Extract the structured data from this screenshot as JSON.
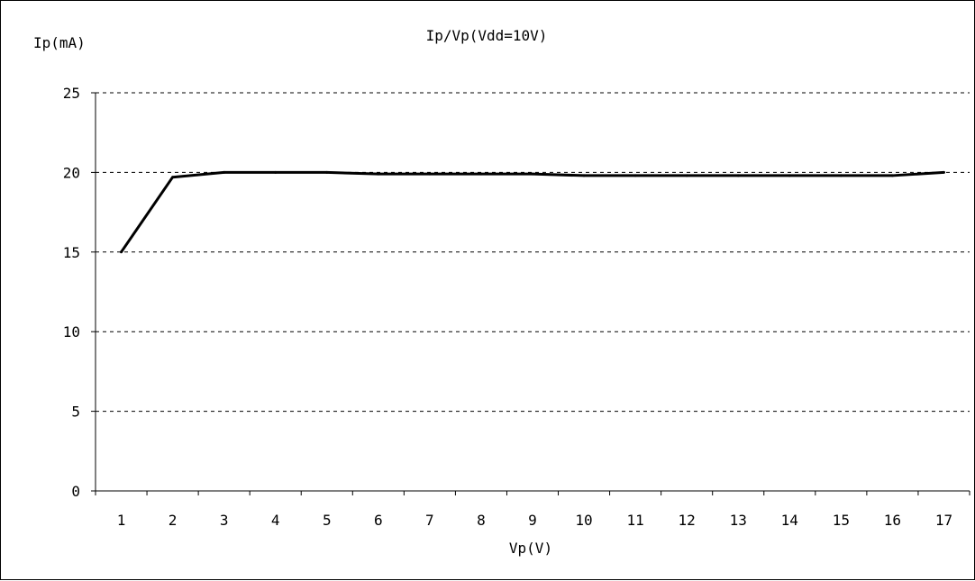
{
  "chart_data": {
    "type": "line",
    "title": "Ip/Vp(Vdd=10V)",
    "xlabel": "Vp(V)",
    "ylabel": "Ip(mA)",
    "categories": [
      "1",
      "2",
      "3",
      "4",
      "5",
      "6",
      "7",
      "8",
      "9",
      "10",
      "11",
      "12",
      "13",
      "14",
      "15",
      "16",
      "17"
    ],
    "yticks": [
      "0",
      "5",
      "10",
      "15",
      "20",
      "25"
    ],
    "ylim": [
      0,
      25
    ],
    "grid": "horizontal dashed",
    "line_color": "#000000",
    "series": [
      {
        "values": [
          15,
          19.7,
          20,
          20,
          20,
          19.9,
          19.9,
          19.9,
          19.9,
          19.8,
          19.8,
          19.8,
          19.8,
          19.8,
          19.8,
          19.8,
          20
        ]
      }
    ]
  }
}
